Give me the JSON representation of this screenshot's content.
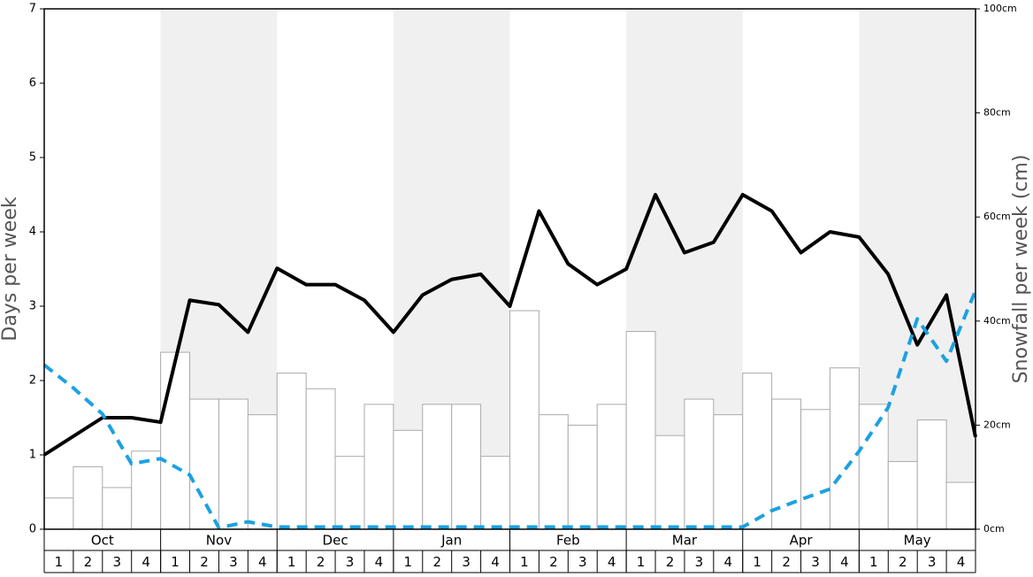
{
  "chart_data": {
    "type": "combo",
    "ylabel": "Days per week",
    "y2label": "Snowfall per week (cm)",
    "months": [
      "Oct",
      "Nov",
      "Dec",
      "Jan",
      "Feb",
      "Mar",
      "Apr",
      "May"
    ],
    "categories": [
      "1",
      "2",
      "3",
      "4",
      "1",
      "2",
      "3",
      "4",
      "1",
      "2",
      "3",
      "4",
      "1",
      "2",
      "3",
      "4",
      "1",
      "2",
      "3",
      "4",
      "1",
      "2",
      "3",
      "4",
      "1",
      "2",
      "3",
      "4",
      "1",
      "2",
      "3",
      "4"
    ],
    "ylim": [
      0,
      7
    ],
    "yticks": [
      0,
      1,
      2,
      3,
      4,
      5,
      6,
      7
    ],
    "y2lim": [
      0,
      100
    ],
    "y2ticks": [
      {
        "value": 0,
        "label": "0cm"
      },
      {
        "value": 20,
        "label": "20cm"
      },
      {
        "value": 40,
        "label": "40cm"
      },
      {
        "value": 60,
        "label": "60cm"
      },
      {
        "value": 80,
        "label": "80cm"
      },
      {
        "value": 100,
        "label": "100cm"
      }
    ],
    "xlim": [
      0,
      32
    ],
    "shade_color": "#f0f0f0",
    "series": [
      {
        "kind": "bar",
        "axis": "y2",
        "color": "#ffffff",
        "edge": "#aaaaaa",
        "values": [
          6,
          12,
          8,
          15,
          34,
          25,
          25,
          22,
          30,
          27,
          14,
          24,
          19,
          24,
          24,
          14,
          42,
          22,
          20,
          24,
          38,
          18,
          25,
          22,
          30,
          25,
          23,
          31,
          24,
          13,
          21,
          9
        ]
      },
      {
        "kind": "line",
        "color": "#000000",
        "dashed": false,
        "x": [
          0,
          1,
          2,
          3,
          4,
          5,
          6,
          7,
          8,
          9,
          10,
          11,
          12,
          13,
          14,
          15,
          16,
          17,
          18,
          19,
          20,
          21,
          22,
          23,
          24,
          25,
          26,
          27,
          28,
          29,
          30,
          31,
          32
        ],
        "values": [
          1.0,
          1.25,
          1.5,
          1.5,
          1.44,
          3.08,
          3.02,
          2.65,
          3.51,
          3.29,
          3.29,
          3.08,
          2.65,
          3.15,
          3.36,
          3.43,
          3.0,
          4.28,
          3.57,
          3.29,
          3.5,
          4.5,
          3.72,
          3.86,
          4.5,
          4.28,
          3.72,
          4.0,
          3.93,
          3.43,
          2.48,
          3.15,
          1.24
        ]
      },
      {
        "kind": "line",
        "color": "#1ba1e2",
        "dashed": true,
        "x": [
          0,
          1,
          2,
          3,
          4,
          5,
          6,
          7,
          8,
          9,
          10,
          11,
          12,
          13,
          14,
          15,
          16,
          17,
          18,
          19,
          20,
          21,
          22,
          23,
          24,
          25,
          26,
          27,
          28,
          29,
          30,
          31,
          32
        ],
        "values": [
          2.21,
          1.9,
          1.55,
          0.88,
          0.95,
          0.73,
          0.02,
          0.1,
          0.03,
          0.03,
          0.03,
          0.03,
          0.03,
          0.03,
          0.03,
          0.03,
          0.03,
          0.03,
          0.03,
          0.03,
          0.03,
          0.03,
          0.03,
          0.03,
          0.03,
          0.25,
          0.4,
          0.54,
          1.05,
          1.64,
          2.83,
          2.26,
          3.21
        ]
      }
    ]
  }
}
